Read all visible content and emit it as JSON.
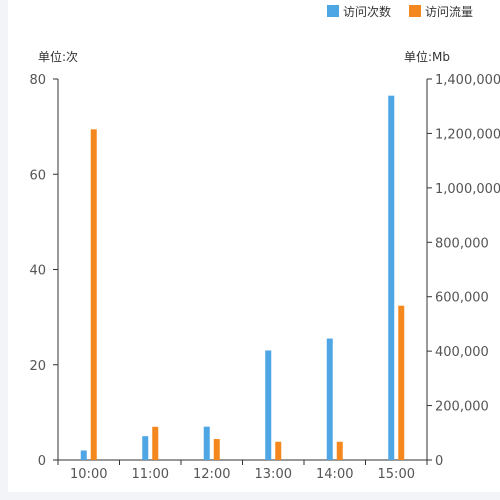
{
  "chart_data": {
    "type": "bar",
    "categories": [
      "10:00",
      "11:00",
      "12:00",
      "13:00",
      "14:00",
      "15:00"
    ],
    "series": [
      {
        "name": "访问次数",
        "axis": "left",
        "color": "#4ea6e4",
        "values": [
          2,
          5,
          7,
          23,
          25.5,
          76.5
        ]
      },
      {
        "name": "访问流量",
        "axis": "right",
        "color": "#f5871f",
        "values": [
          1215000,
          122000,
          77000,
          67000,
          67000,
          567000
        ]
      }
    ],
    "y_left": {
      "unit_label": "单位:次",
      "ylim": [
        0,
        80
      ],
      "ticks": [
        0,
        20,
        40,
        60,
        80
      ],
      "tick_labels": [
        "0",
        "20",
        "40",
        "60",
        "80"
      ]
    },
    "y_right": {
      "unit_label": "单位:Mb",
      "ylim": [
        0,
        1400000
      ],
      "ticks": [
        0,
        200000,
        400000,
        600000,
        800000,
        1000000,
        1200000,
        1400000
      ],
      "tick_labels": [
        "0",
        "200,000",
        "400,000",
        "600,000",
        "800,000",
        "1,000,000",
        "1,200,000",
        "1,400,000"
      ]
    },
    "legend_position": "top-right",
    "grid": false
  }
}
